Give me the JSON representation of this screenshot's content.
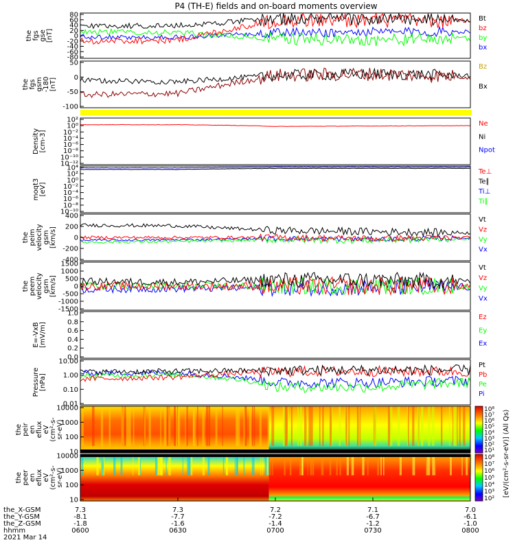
{
  "title": "P4 (TH-E) fields and on-board moments overview",
  "colors": {
    "black": "#000000",
    "red": "#ff0000",
    "green": "#00ff00",
    "blue": "#0000ff",
    "darkred": "#8b0000",
    "yellow": "#ffff00",
    "gold": "#c8a000"
  },
  "panels": [
    {
      "id": "fgs-gse",
      "ylabel": [
        "the",
        "fgs",
        "gse",
        "[nT]"
      ],
      "yticks": [
        "80",
        "60",
        "40",
        "20",
        "0",
        "-20",
        "-40",
        "-60",
        "-80"
      ],
      "legend": [
        {
          "text": "Bt",
          "color": "black"
        },
        {
          "text": "bz",
          "color": "red"
        },
        {
          "text": "by",
          "color": "green"
        },
        {
          "text": "bx",
          "color": "blue"
        }
      ]
    },
    {
      "id": "fgs-gsm",
      "ylabel": [
        "the",
        "fgs",
        "gsm",
        "-180",
        "[nT]"
      ],
      "yticks": [
        "50",
        "0",
        "-50",
        "-100"
      ],
      "legend": [
        {
          "text": "Bz",
          "color": "gold"
        },
        {
          "text": "Bx",
          "color": "black"
        }
      ]
    },
    {
      "id": "density",
      "ylabel": [
        "Density",
        "[cm-3]"
      ],
      "yticks": [
        "10²",
        "10⁰",
        "10⁻²",
        "10⁻⁴",
        "10⁻⁶",
        "10⁻⁸",
        "10⁻¹⁰",
        "10⁻¹²"
      ],
      "legend": [
        {
          "text": "Ne",
          "color": "red"
        },
        {
          "text": "Ni",
          "color": "black"
        },
        {
          "text": "Npot",
          "color": "blue"
        }
      ]
    },
    {
      "id": "temperature",
      "ylabel": [
        "moqt3",
        "[eV]"
      ],
      "yticks": [
        "10⁴",
        "10²",
        "10⁰",
        "10⁻²",
        "10⁻⁴",
        "10⁻⁶",
        "10⁻⁸",
        "10⁻¹⁰"
      ],
      "legend": [
        {
          "text": "Te⊥",
          "color": "red"
        },
        {
          "text": "Te∥",
          "color": "black"
        },
        {
          "text": "Ti⊥",
          "color": "blue"
        },
        {
          "text": "Ti∥",
          "color": "green"
        }
      ]
    },
    {
      "id": "ion-velocity",
      "ylabel": [
        "the",
        "peim",
        "velocity",
        "gsm",
        "[km/s]"
      ],
      "yticks": [
        "400",
        "200",
        "0",
        "-200",
        "-400"
      ],
      "legend": [
        {
          "text": "Vt",
          "color": "black"
        },
        {
          "text": "Vz",
          "color": "red"
        },
        {
          "text": "Vy",
          "color": "green"
        },
        {
          "text": "Vx",
          "color": "blue"
        }
      ]
    },
    {
      "id": "electron-velocity",
      "ylabel": [
        "the",
        "peem",
        "velocity",
        "gsm",
        "[km/s]"
      ],
      "yticks": [
        "1500",
        "1000",
        "500",
        "0",
        "-500",
        "-1000",
        "-1500"
      ],
      "legend": [
        {
          "text": "Vt",
          "color": "black"
        },
        {
          "text": "Vz",
          "color": "red"
        },
        {
          "text": "Vy",
          "color": "green"
        },
        {
          "text": "Vx",
          "color": "blue"
        }
      ]
    },
    {
      "id": "efield",
      "ylabel": [
        "E=-VxB",
        "[mV/m]"
      ],
      "yticks": [
        "1.0",
        "0.8",
        "0.6",
        "0.4",
        "0.2",
        "0.0"
      ],
      "legend": [
        {
          "text": "Ez",
          "color": "red"
        },
        {
          "text": "Ey",
          "color": "green"
        },
        {
          "text": "Ex",
          "color": "blue"
        }
      ]
    },
    {
      "id": "pressure",
      "ylabel": [
        "Pressure",
        "[nPa]"
      ],
      "yticks": [
        "10.00",
        "1.00",
        "0.10",
        "0.01"
      ],
      "legend": [
        {
          "text": "Pt",
          "color": "black"
        },
        {
          "text": "Pb",
          "color": "red"
        },
        {
          "text": "Pe",
          "color": "green"
        },
        {
          "text": "Pi",
          "color": "blue"
        }
      ]
    },
    {
      "id": "ion-spectrogram",
      "ylabel": [
        "the",
        "peir",
        "en",
        "eflux",
        "eV",
        "(cm²-s-",
        "sr-eV)"
      ],
      "yticks": [
        "10000",
        "1000",
        "100",
        "10"
      ],
      "legend": []
    },
    {
      "id": "electron-spectrogram",
      "ylabel": [
        "the",
        "peer",
        "en",
        "eflux",
        "eV",
        "(cm²-s-",
        "sr-eV)"
      ],
      "yticks": [
        "10000",
        "1000",
        "100",
        "10"
      ],
      "legend": []
    }
  ],
  "colorbar": {
    "top": {
      "ticks": [
        "10⁸",
        "10⁷",
        "10⁶",
        "10⁵",
        "10⁴",
        "10³",
        "10²",
        "10¹"
      ],
      "label": "[eV/(cm²-s-sr-eV)] (All Qs)"
    },
    "bottom": {
      "ticks": [
        "10⁸",
        "10⁷",
        "10⁶",
        "10⁵",
        "10⁴",
        "10³",
        "10²"
      ],
      "label": "[eV/(cm²-s-sr-eV)] (All Qs)"
    }
  },
  "xaxis": {
    "row_labels": [
      "the_X-GSM",
      "the_Y-GSM",
      "the_Z-GSM",
      "hhmm",
      "2021 Mar 14"
    ],
    "ticks": [
      {
        "x": "7.3",
        "y": "-8.1",
        "z": "-1.8",
        "t": "0600"
      },
      {
        "x": "7.3",
        "y": "-7.7",
        "z": "-1.6",
        "t": "0630"
      },
      {
        "x": "7.2",
        "y": "-7.2",
        "z": "-1.4",
        "t": "0700"
      },
      {
        "x": "7.1",
        "y": "-6.7",
        "z": "-1.2",
        "t": "0730"
      },
      {
        "x": "7.0",
        "y": "-6.1",
        "z": "-1.0",
        "t": "0800"
      }
    ]
  },
  "chart_data": [
    {
      "type": "line",
      "panel": "fgs-gse",
      "ylim": [
        -80,
        80
      ],
      "x": [
        "0600",
        "0630",
        "0700",
        "0730",
        "0800"
      ],
      "series": [
        {
          "name": "Bt",
          "values": [
            35,
            35,
            60,
            58,
            55
          ]
        },
        {
          "name": "bz",
          "values": [
            -20,
            -15,
            55,
            55,
            50
          ]
        },
        {
          "name": "by",
          "values": [
            15,
            10,
            -10,
            -15,
            -10
          ]
        },
        {
          "name": "bx",
          "values": [
            -5,
            -5,
            10,
            12,
            15
          ]
        }
      ]
    },
    {
      "type": "line",
      "panel": "fgs-gsm",
      "ylim": [
        -120,
        60
      ],
      "x": [
        "0600",
        "0630",
        "0700",
        "0730",
        "0800"
      ],
      "series": [
        {
          "name": "Bz",
          "values": [
            -70,
            -65,
            5,
            10,
            0
          ]
        },
        {
          "name": "Bx",
          "values": [
            -15,
            -20,
            5,
            10,
            5
          ]
        }
      ]
    },
    {
      "type": "line",
      "panel": "density",
      "x": [
        "0600",
        "0630",
        "0700",
        "0730",
        "0800"
      ],
      "series": [
        {
          "name": "Ne",
          "values": [
            1,
            1,
            0.3,
            0.4,
            0.5
          ]
        }
      ]
    },
    {
      "type": "line",
      "panel": "temperature",
      "x": [
        "0600",
        "0630",
        "0700",
        "0730",
        "0800"
      ],
      "series": [
        {
          "name": "Te⊥",
          "values": [
            1000,
            1000,
            2000,
            2000,
            2000
          ]
        },
        {
          "name": "Ti⊥",
          "values": [
            3000,
            3000,
            5000,
            5000,
            5000
          ]
        }
      ]
    },
    {
      "type": "line",
      "panel": "ion-velocity",
      "ylim": [
        -400,
        400
      ],
      "x": [
        "0600",
        "0630",
        "0700",
        "0730",
        "0800"
      ],
      "series": [
        {
          "name": "Vt",
          "values": [
            210,
            200,
            120,
            100,
            80
          ]
        },
        {
          "name": "Vz",
          "values": [
            0,
            0,
            0,
            -20,
            0
          ]
        },
        {
          "name": "Vy",
          "values": [
            -80,
            -70,
            -40,
            -50,
            -20
          ]
        },
        {
          "name": "Vx",
          "values": [
            -50,
            -40,
            -20,
            -30,
            -10
          ]
        }
      ]
    },
    {
      "type": "line",
      "panel": "electron-velocity",
      "ylim": [
        -1500,
        1500
      ],
      "x": [
        "0600",
        "0630",
        "0700",
        "0730",
        "0800"
      ],
      "series": [
        {
          "name": "Vt",
          "values": [
            300,
            250,
            400,
            400,
            300
          ]
        },
        {
          "name": "Vz",
          "values": [
            0,
            0,
            0,
            0,
            0
          ]
        },
        {
          "name": "Vy",
          "values": [
            0,
            0,
            0,
            0,
            0
          ]
        },
        {
          "name": "Vx",
          "values": [
            -200,
            -150,
            -100,
            -100,
            -50
          ]
        }
      ]
    },
    {
      "type": "line",
      "panel": "pressure",
      "x": [
        "0600",
        "0630",
        "0700",
        "0730",
        "0800"
      ],
      "series": [
        {
          "name": "Pt",
          "values": [
            1.5,
            1.7,
            1.9,
            2.0,
            2.0
          ]
        },
        {
          "name": "Pb",
          "values": [
            0.5,
            0.7,
            1.6,
            1.7,
            1.6
          ]
        },
        {
          "name": "Pe",
          "values": [
            0.8,
            1.0,
            0.15,
            0.15,
            0.3
          ]
        },
        {
          "name": "Pi",
          "values": [
            1.3,
            1.3,
            0.3,
            0.3,
            0.4
          ]
        }
      ]
    },
    {
      "type": "heatmap",
      "panel": "ion-spectrogram",
      "ylim": [
        10,
        20000
      ]
    },
    {
      "type": "heatmap",
      "panel": "electron-spectrogram",
      "ylim": [
        10,
        20000
      ]
    }
  ]
}
